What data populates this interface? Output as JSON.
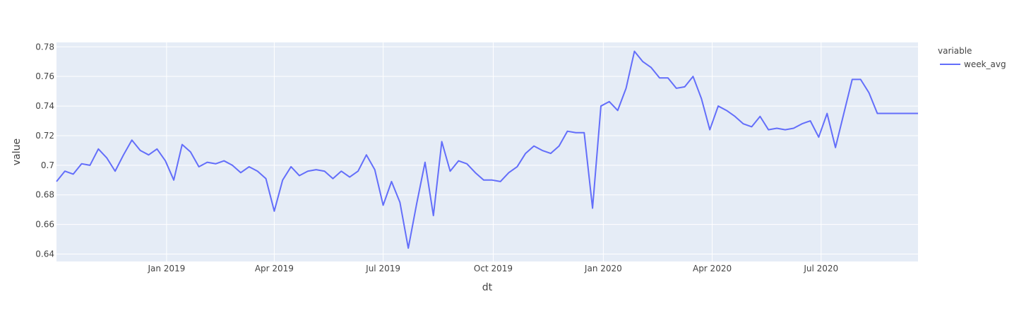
{
  "chart_data": {
    "type": "line",
    "title": "",
    "xlabel": "dt",
    "ylabel": "value",
    "legend_title": "variable",
    "legend_position": "top-right",
    "grid": true,
    "x_range": [
      "2018-10-01",
      "2020-09-20"
    ],
    "ylim": [
      0.635,
      0.783
    ],
    "y_ticks": [
      0.64,
      0.66,
      0.68,
      0.7,
      0.72,
      0.74,
      0.76,
      0.78
    ],
    "y_tick_labels": [
      "0.64",
      "0.66",
      "0.68",
      "0.7",
      "0.72",
      "0.74",
      "0.76",
      "0.78"
    ],
    "x_ticks": [
      "2019-01-01",
      "2019-04-01",
      "2019-07-01",
      "2019-10-01",
      "2020-01-01",
      "2020-04-01",
      "2020-07-01"
    ],
    "x_tick_labels": [
      "Jan 2019",
      "Apr 2019",
      "Jul 2019",
      "Oct 2019",
      "Jan 2020",
      "Apr 2020",
      "Jul 2020"
    ],
    "colors": {
      "plot_bg": "#e5ecf6",
      "grid": "#ffffff",
      "line": "#636efa",
      "text": "#444444"
    },
    "series": [
      {
        "name": "week_avg",
        "x": [
          "2018-10-01",
          "2018-10-08",
          "2018-10-15",
          "2018-10-22",
          "2018-10-29",
          "2018-11-05",
          "2018-11-12",
          "2018-11-19",
          "2018-11-26",
          "2018-12-03",
          "2018-12-10",
          "2018-12-17",
          "2018-12-24",
          "2018-12-31",
          "2019-01-07",
          "2019-01-14",
          "2019-01-21",
          "2019-01-28",
          "2019-02-04",
          "2019-02-11",
          "2019-02-18",
          "2019-02-25",
          "2019-03-04",
          "2019-03-11",
          "2019-03-18",
          "2019-03-25",
          "2019-04-01",
          "2019-04-08",
          "2019-04-15",
          "2019-04-22",
          "2019-04-29",
          "2019-05-06",
          "2019-05-13",
          "2019-05-20",
          "2019-05-27",
          "2019-06-03",
          "2019-06-10",
          "2019-06-17",
          "2019-06-24",
          "2019-07-01",
          "2019-07-08",
          "2019-07-15",
          "2019-07-22",
          "2019-07-29",
          "2019-08-05",
          "2019-08-12",
          "2019-08-19",
          "2019-08-26",
          "2019-09-02",
          "2019-09-09",
          "2019-09-16",
          "2019-09-23",
          "2019-09-30",
          "2019-10-07",
          "2019-10-14",
          "2019-10-21",
          "2019-10-28",
          "2019-11-04",
          "2019-11-11",
          "2019-11-18",
          "2019-11-25",
          "2019-12-02",
          "2019-12-09",
          "2019-12-16",
          "2019-12-23",
          "2019-12-30",
          "2020-01-06",
          "2020-01-13",
          "2020-01-20",
          "2020-01-27",
          "2020-02-03",
          "2020-02-10",
          "2020-02-17",
          "2020-02-24",
          "2020-03-02",
          "2020-03-09",
          "2020-03-16",
          "2020-03-23",
          "2020-03-30",
          "2020-04-06",
          "2020-04-13",
          "2020-04-20",
          "2020-04-27",
          "2020-05-04",
          "2020-05-11",
          "2020-05-18",
          "2020-05-25",
          "2020-06-01",
          "2020-06-08",
          "2020-06-15",
          "2020-06-22",
          "2020-06-29",
          "2020-07-06",
          "2020-07-13",
          "2020-07-20",
          "2020-07-27",
          "2020-08-03",
          "2020-08-10",
          "2020-08-17",
          "2020-08-24",
          "2020-08-31",
          "2020-09-07",
          "2020-09-14",
          "2020-09-20"
        ],
        "values": [
          0.689,
          0.696,
          0.694,
          0.701,
          0.7,
          0.711,
          0.705,
          0.696,
          0.707,
          0.717,
          0.71,
          0.707,
          0.711,
          0.703,
          0.69,
          0.714,
          0.709,
          0.699,
          0.702,
          0.701,
          0.703,
          0.7,
          0.695,
          0.699,
          0.696,
          0.691,
          0.669,
          0.69,
          0.699,
          0.693,
          0.696,
          0.697,
          0.696,
          0.691,
          0.696,
          0.692,
          0.696,
          0.707,
          0.697,
          0.673,
          0.689,
          0.675,
          0.644,
          0.674,
          0.702,
          0.666,
          0.716,
          0.696,
          0.703,
          0.701,
          0.695,
          0.69,
          0.69,
          0.689,
          0.695,
          0.699,
          0.708,
          0.713,
          0.71,
          0.708,
          0.713,
          0.723,
          0.722,
          0.722,
          0.671,
          0.74,
          0.743,
          0.737,
          0.752,
          0.777,
          0.77,
          0.766,
          0.759,
          0.759,
          0.752,
          0.753,
          0.76,
          0.745,
          0.724,
          0.74,
          0.737,
          0.733,
          0.728,
          0.726,
          0.733,
          0.724,
          0.725,
          0.724,
          0.725,
          0.728,
          0.73,
          0.719,
          0.735,
          0.712,
          0.735,
          0.758,
          0.758,
          0.749,
          0.735,
          0.735,
          0.735,
          0.735,
          0.735,
          0.735
        ]
      }
    ]
  }
}
